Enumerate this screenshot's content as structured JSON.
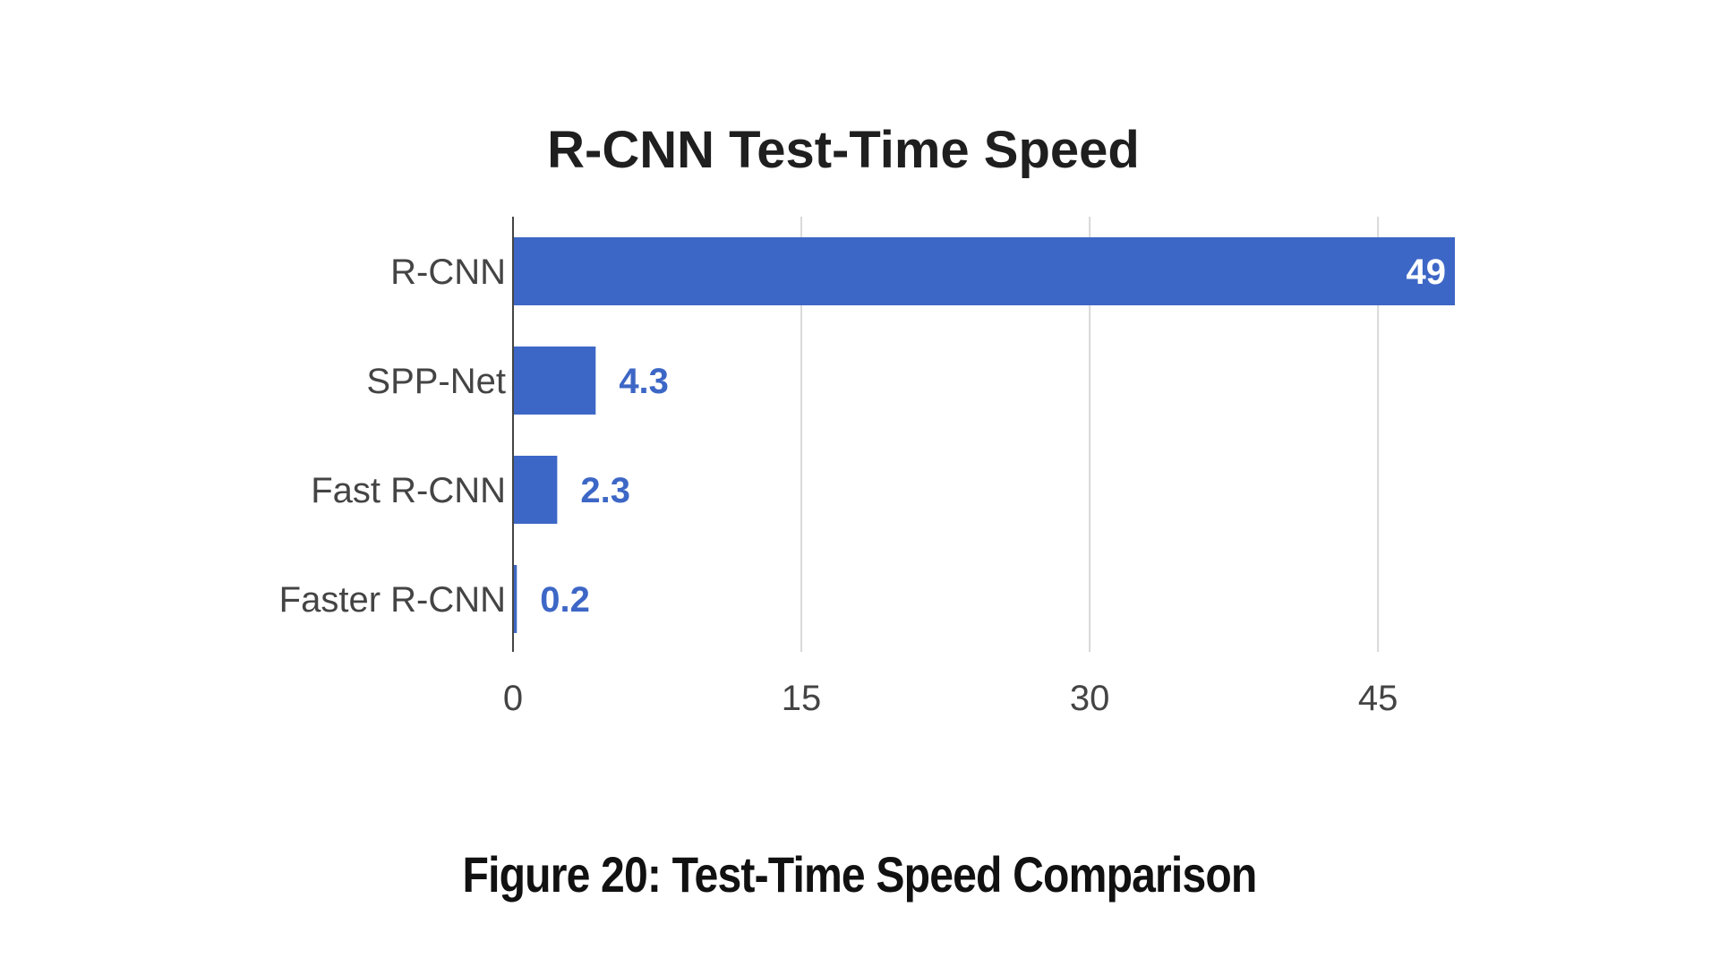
{
  "chart_data": {
    "type": "bar",
    "orientation": "horizontal",
    "title": "R-CNN Test-Time Speed",
    "categories": [
      "R-CNN",
      "SPP-Net",
      "Fast R-CNN",
      "Faster R-CNN"
    ],
    "values": [
      49,
      4.3,
      2.3,
      0.2
    ],
    "data_labels": [
      "49",
      "4.3",
      "2.3",
      "0.2"
    ],
    "xlim": [
      0,
      49
    ],
    "ticks": [
      0,
      15,
      30,
      45
    ],
    "tick_labels": [
      "0",
      "15",
      "30",
      "45"
    ],
    "xlabel": "",
    "ylabel": "",
    "grid": true,
    "bar_color": "#3d67c6",
    "label_inside_color": "#ffffff",
    "label_outside_color": "#3d67c6",
    "gridline_color": "#d9d9d9",
    "axis_color": "#444444"
  },
  "caption": "Figure 20: Test-Time Speed Comparison"
}
